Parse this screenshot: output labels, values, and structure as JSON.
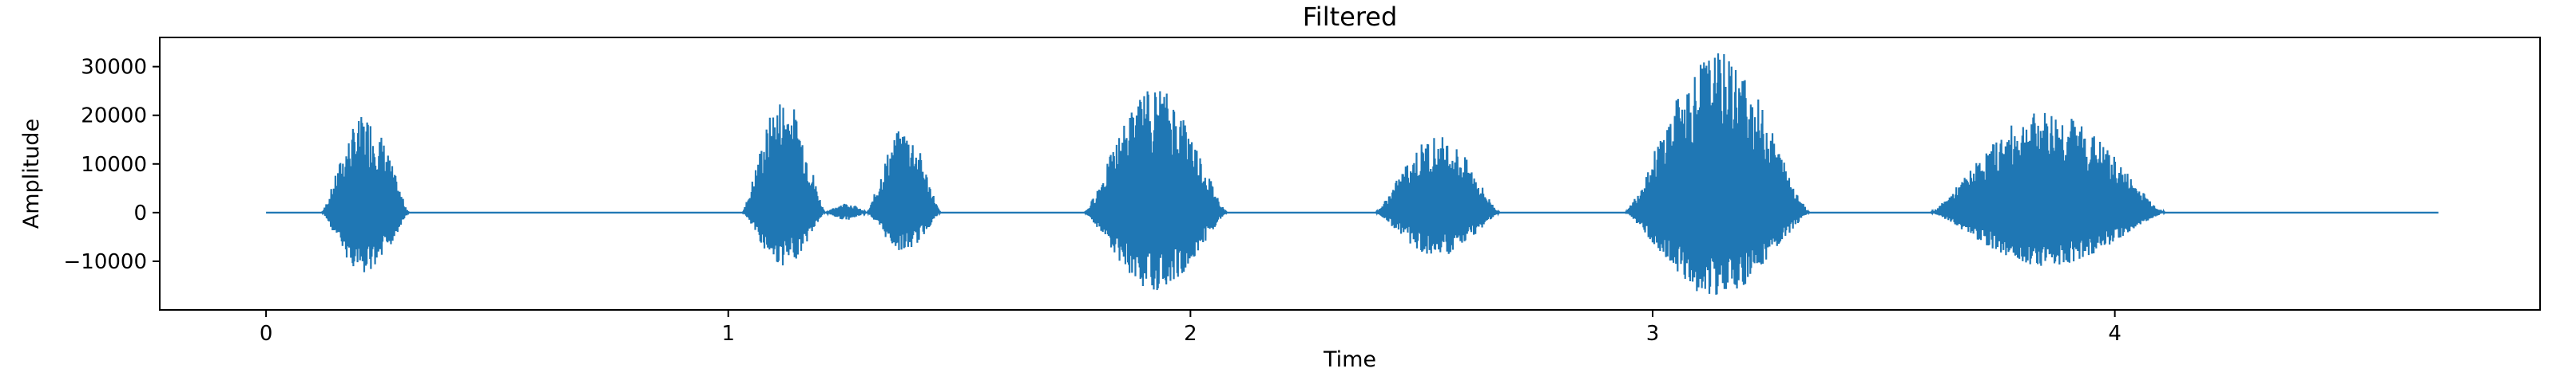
{
  "chart_data": {
    "type": "line",
    "title": "Filtered",
    "xlabel": "Time",
    "ylabel": "Amplitude",
    "xlim": [
      -0.23,
      4.92
    ],
    "ylim": [
      -20000,
      36000
    ],
    "x_ticks": [
      0,
      1,
      2,
      3,
      4
    ],
    "x_tick_labels": [
      "0",
      "1",
      "2",
      "3",
      "4"
    ],
    "y_ticks": [
      -10000,
      0,
      10000,
      20000,
      30000
    ],
    "y_tick_labels": [
      "−10000",
      "0",
      "10000",
      "20000",
      "30000"
    ],
    "grid": false,
    "legend": "none",
    "series": [
      {
        "color": "#1f77b4",
        "x_range": [
          0,
          4.7
        ],
        "baseline": 0,
        "bursts": [
          {
            "start": 0.12,
            "end": 0.31,
            "peak_pos": 20000,
            "peak_neg": -13000
          },
          {
            "start": 1.03,
            "end": 1.21,
            "peak_pos": 24000,
            "peak_neg": -11000
          },
          {
            "start": 1.21,
            "end": 1.3,
            "peak_pos": 2000,
            "peak_neg": -1500
          },
          {
            "start": 1.3,
            "end": 1.46,
            "peak_pos": 17500,
            "peak_neg": -8000
          },
          {
            "start": 1.77,
            "end": 2.08,
            "peak_pos": 26000,
            "peak_neg": -16000
          },
          {
            "start": 2.4,
            "end": 2.67,
            "peak_pos": 16000,
            "peak_neg": -9000
          },
          {
            "start": 2.94,
            "end": 3.34,
            "peak_pos": 33000,
            "peak_neg": -17500
          },
          {
            "start": 3.6,
            "end": 4.11,
            "peak_pos": 21000,
            "peak_neg": -11000
          }
        ]
      }
    ]
  }
}
